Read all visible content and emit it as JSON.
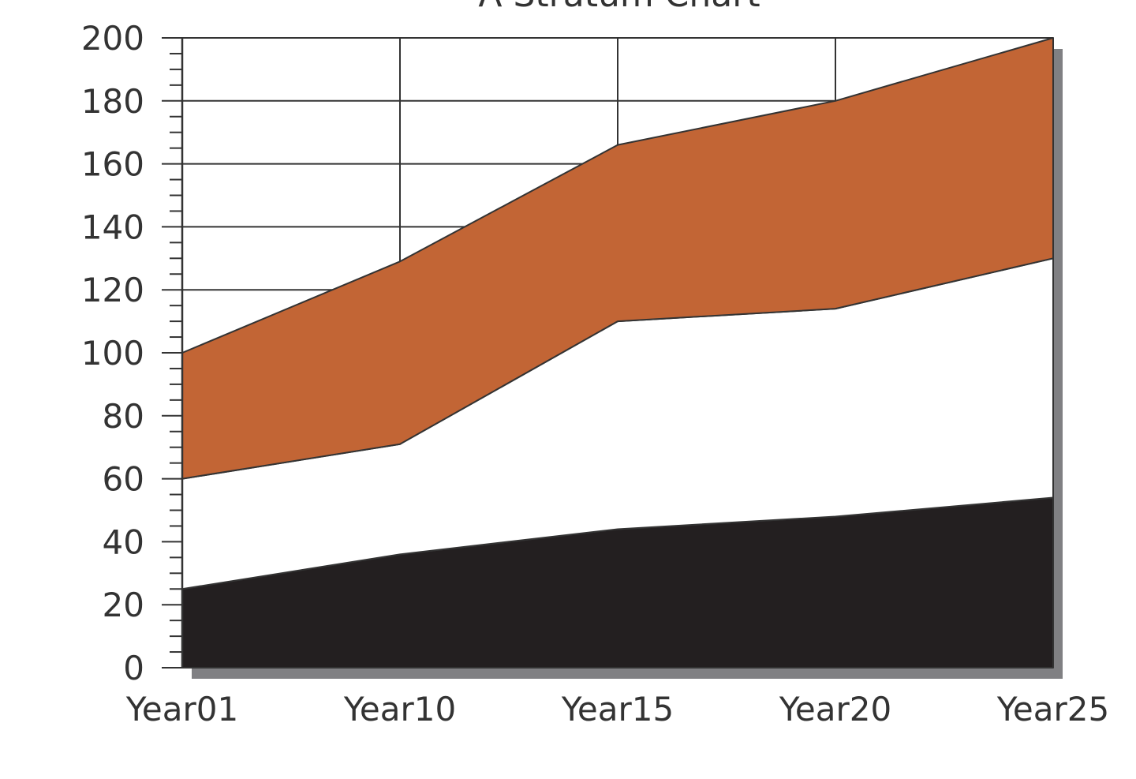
{
  "chart_data": {
    "type": "area",
    "stacked": true,
    "title": "A Stratum Chart",
    "xlabel": "",
    "ylabel": "",
    "categories": [
      "Year01",
      "Year10",
      "Year15",
      "Year20",
      "Year25"
    ],
    "ylim": [
      0,
      200
    ],
    "yticks": [
      0,
      20,
      40,
      60,
      80,
      100,
      120,
      140,
      160,
      180,
      200
    ],
    "grid": true,
    "legend": "none",
    "series": [
      {
        "values": [
          25,
          36,
          44,
          48,
          54
        ],
        "color": "#231f20"
      },
      {
        "values": [
          35,
          35,
          66,
          66,
          76
        ],
        "color": "#ffffff"
      },
      {
        "values": [
          40,
          58,
          56,
          66,
          70
        ],
        "color": "#c26535"
      }
    ]
  }
}
